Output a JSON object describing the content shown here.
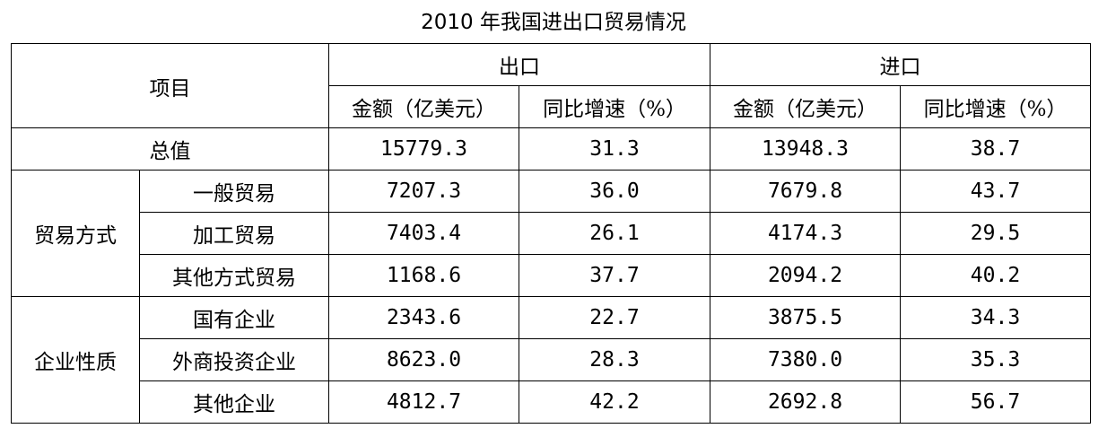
{
  "title": "2010 年我国进出口贸易情况",
  "header": {
    "item": "项目",
    "export": "出口",
    "import": "进口",
    "amount": "金额（亿美元）",
    "growth": "同比增速（%）"
  },
  "total": {
    "label": "总值",
    "export_amount": "15779.3",
    "export_growth": "31.3",
    "import_amount": "13948.3",
    "import_growth": "38.7"
  },
  "trade_mode": {
    "label": "贸易方式",
    "rows": [
      {
        "label": "一般贸易",
        "export_amount": "7207.3",
        "export_growth": "36.0",
        "import_amount": "7679.8",
        "import_growth": "43.7"
      },
      {
        "label": "加工贸易",
        "export_amount": "7403.4",
        "export_growth": "26.1",
        "import_amount": "4174.3",
        "import_growth": "29.5"
      },
      {
        "label": "其他方式贸易",
        "export_amount": "1168.6",
        "export_growth": "37.7",
        "import_amount": "2094.2",
        "import_growth": "40.2"
      }
    ]
  },
  "enterprise_type": {
    "label": "企业性质",
    "rows": [
      {
        "label": "国有企业",
        "export_amount": "2343.6",
        "export_growth": "22.7",
        "import_amount": "3875.5",
        "import_growth": "34.3"
      },
      {
        "label": "外商投资企业",
        "export_amount": "8623.0",
        "export_growth": "28.3",
        "import_amount": "7380.0",
        "import_growth": "35.3"
      },
      {
        "label": "其他企业",
        "export_amount": "4812.7",
        "export_growth": "42.2",
        "import_amount": "2692.8",
        "import_growth": "56.7"
      }
    ]
  }
}
